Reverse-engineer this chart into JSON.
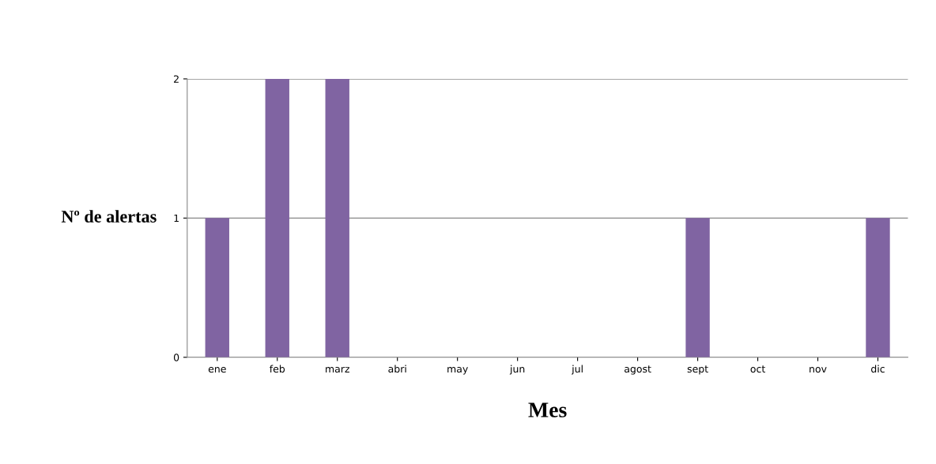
{
  "chart_data": {
    "type": "bar",
    "xlabel": "Mes",
    "ylabel": "Nº de alertas",
    "categories": [
      "ene",
      "feb",
      "marz",
      "abri",
      "may",
      "jun",
      "jul",
      "agost",
      "sept",
      "oct",
      "nov",
      "dic"
    ],
    "values": [
      1,
      2,
      2,
      0,
      0,
      0,
      0,
      0,
      1,
      0,
      0,
      1
    ],
    "color": "#8064a2",
    "ylim": [
      0,
      2
    ],
    "yticks": [
      0,
      1,
      2
    ],
    "grid": "y",
    "legend": false
  }
}
